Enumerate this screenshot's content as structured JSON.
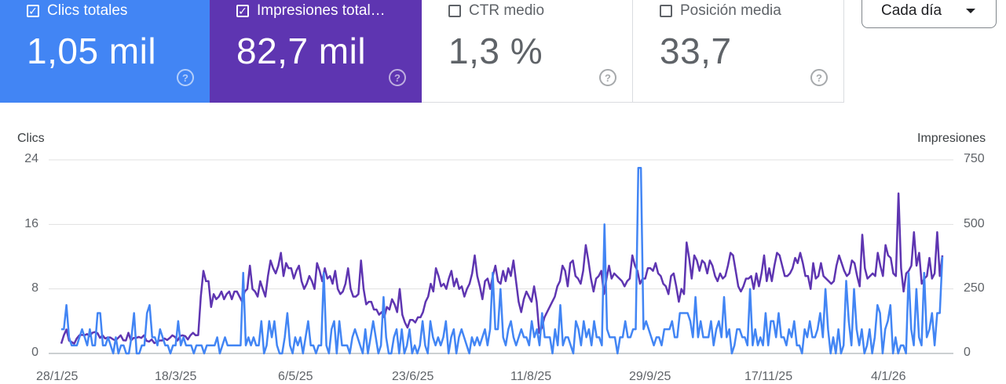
{
  "metrics": [
    {
      "label": "Clics totales",
      "value": "1,05 mil",
      "checked": true,
      "color": "#4285f4"
    },
    {
      "label": "Impresiones total…",
      "value": "82,7 mil",
      "checked": true,
      "color": "#5e35b1"
    },
    {
      "label": "CTR medio",
      "value": "1,3 %",
      "checked": false
    },
    {
      "label": "Posición media",
      "value": "33,7",
      "checked": false
    }
  ],
  "help_glyph": "?",
  "check_glyph": "✓",
  "dropdown": {
    "label": "Cada día"
  },
  "chart_data": {
    "type": "line",
    "y_left_label": "Clics",
    "y_right_label": "Impresiones",
    "y_left_ticks": [
      "24",
      "16",
      "8",
      "0"
    ],
    "y_right_ticks": [
      "750",
      "500",
      "250",
      "0"
    ],
    "ylim_left": [
      0,
      24
    ],
    "ylim_right": [
      0,
      750
    ],
    "x_ticks": [
      "28/1/25",
      "18/3/25",
      "6/5/25",
      "23/6/25",
      "11/8/25",
      "29/9/25",
      "17/11/25",
      "4/1/26"
    ],
    "grid": true,
    "series": [
      {
        "name": "Clics",
        "axis": "left",
        "color": "#4285f4",
        "values": [
          3,
          3,
          6,
          2,
          1,
          1,
          1,
          2,
          3,
          2,
          1,
          3,
          1,
          1,
          5,
          5,
          1,
          1,
          2,
          1,
          0,
          2,
          0,
          1,
          1,
          0,
          0,
          2,
          5,
          0,
          0,
          1,
          1,
          5,
          6,
          2,
          2,
          1,
          3,
          2,
          1,
          1,
          0,
          1,
          1,
          4,
          1,
          2,
          1,
          1,
          1,
          0,
          1,
          1,
          1,
          0,
          1,
          1,
          1,
          1,
          2,
          0,
          1,
          2,
          1,
          1,
          1,
          1,
          1,
          1,
          10,
          1,
          2,
          1,
          2,
          1,
          1,
          4,
          0,
          1,
          4,
          2,
          4,
          1,
          0,
          0,
          2,
          5,
          1,
          0,
          2,
          1,
          2,
          0,
          2,
          4,
          1,
          1,
          0,
          1,
          1,
          10,
          1,
          0,
          3,
          4,
          0,
          4,
          1,
          1,
          1,
          0,
          2,
          3,
          2,
          1,
          0,
          3,
          0,
          2,
          4,
          2,
          0,
          1,
          7,
          2,
          0,
          0,
          2,
          3,
          0,
          3,
          0,
          1,
          3,
          0,
          1,
          0,
          1,
          4,
          1,
          0,
          4,
          2,
          1,
          2,
          1,
          2,
          4,
          0,
          2,
          3,
          0,
          2,
          3,
          2,
          1,
          0,
          2,
          1,
          2,
          1,
          2,
          3,
          1,
          3,
          10,
          3,
          3,
          8,
          2,
          1,
          3,
          4,
          2,
          1,
          2,
          3,
          2,
          2,
          1,
          4,
          2,
          3,
          1,
          5,
          2,
          2,
          2,
          0,
          3,
          1,
          6,
          1,
          2,
          2,
          1,
          0,
          4,
          3,
          1,
          4,
          2,
          3,
          1,
          4,
          2,
          2,
          1,
          16,
          3,
          2,
          2,
          2,
          0,
          2,
          2,
          4,
          2,
          2,
          3,
          3,
          23,
          23,
          3,
          4,
          3,
          2,
          1,
          2,
          2,
          1,
          3,
          3,
          3,
          4,
          2,
          2,
          5,
          5,
          5,
          5,
          4,
          2,
          7,
          2,
          4,
          2,
          2,
          2,
          4,
          1,
          3,
          4,
          2,
          7,
          2,
          3,
          0,
          1,
          3,
          3,
          2,
          2,
          1,
          8,
          1,
          3,
          1,
          2,
          1,
          5,
          1,
          4,
          4,
          2,
          5,
          2,
          2,
          1,
          3,
          2,
          4,
          1,
          1,
          0,
          3,
          2,
          4,
          2,
          2,
          3,
          5,
          2,
          8,
          3,
          0,
          2,
          0,
          3,
          0,
          1,
          9,
          4,
          1,
          8,
          3,
          1,
          3,
          0,
          1,
          3,
          0,
          2,
          6,
          5,
          0,
          3,
          4,
          6,
          0,
          2,
          0,
          1,
          1,
          0,
          10,
          3,
          1,
          8,
          2,
          1,
          10,
          2,
          3,
          5,
          1,
          5,
          5,
          12
        ]
      },
      {
        "name": "Impresiones",
        "axis": "right",
        "color": "#5e35b1",
        "values": [
          38,
          70,
          93,
          50,
          44,
          38,
          58,
          70,
          72,
          70,
          75,
          67,
          80,
          83,
          79,
          60,
          70,
          58,
          62,
          62,
          55,
          50,
          60,
          70,
          51,
          50,
          80,
          50,
          60,
          60,
          64,
          60,
          70,
          49,
          46,
          54,
          40,
          44,
          50,
          50,
          58,
          52,
          60,
          70,
          64,
          50,
          68,
          70,
          67,
          54,
          70,
          80,
          70,
          71,
          220,
          320,
          280,
          280,
          180,
          230,
          210,
          220,
          240,
          210,
          230,
          240,
          210,
          240,
          240,
          220,
          200,
          240,
          250,
          340,
          250,
          240,
          220,
          280,
          250,
          220,
          300,
          360,
          330,
          310,
          340,
          390,
          300,
          350,
          330,
          330,
          290,
          320,
          340,
          280,
          250,
          270,
          300,
          280,
          250,
          350,
          320,
          280,
          330,
          290,
          300,
          270,
          320,
          250,
          230,
          240,
          270,
          330,
          250,
          220,
          220,
          230,
          360,
          250,
          190,
          200,
          200,
          170,
          170,
          150,
          160,
          140,
          180,
          170,
          210,
          190,
          160,
          250,
          150,
          120,
          100,
          130,
          130,
          120,
          140,
          140,
          160,
          200,
          220,
          270,
          240,
          330,
          300,
          260,
          270,
          250,
          290,
          320,
          260,
          290,
          250,
          260,
          220,
          250,
          270,
          310,
          380,
          300,
          260,
          210,
          280,
          290,
          250,
          300,
          340,
          280,
          270,
          320,
          280,
          330,
          300,
          360,
          280,
          200,
          160,
          210,
          240,
          220,
          200,
          260,
          200,
          80,
          100,
          140,
          160,
          180,
          200,
          220,
          260,
          280,
          340,
          320,
          260,
          350,
          360,
          300,
          290,
          270,
          320,
          420,
          360,
          290,
          240,
          290,
          300,
          320,
          230,
          290,
          340,
          290,
          310,
          300,
          290,
          280,
          260,
          280,
          290,
          380,
          340,
          320,
          270,
          290,
          290,
          330,
          330,
          320,
          350,
          310,
          300,
          270,
          260,
          230,
          300,
          310,
          260,
          200,
          250,
          230,
          430,
          370,
          290,
          380,
          360,
          320,
          360,
          350,
          310,
          360,
          340,
          300,
          280,
          310,
          290,
          300,
          340,
          390,
          380,
          320,
          260,
          240,
          260,
          290,
          290,
          300,
          250,
          310,
          260,
          310,
          380,
          280,
          330,
          280,
          340,
          390,
          380,
          340,
          300,
          300,
          310,
          330,
          370,
          350,
          390,
          350,
          300,
          300,
          250,
          350,
          290,
          300,
          350,
          300,
          290,
          280,
          270,
          280,
          340,
          380,
          350,
          320,
          300,
          310,
          360,
          350,
          300,
          260,
          460,
          330,
          290,
          300,
          310,
          300,
          390,
          340,
          300,
          420,
          380,
          370,
          310,
          300,
          620,
          330,
          240,
          310,
          320,
          340,
          470,
          340,
          390,
          270,
          290,
          300,
          370,
          290,
          310,
          470,
          300,
          380
        ]
      }
    ]
  }
}
